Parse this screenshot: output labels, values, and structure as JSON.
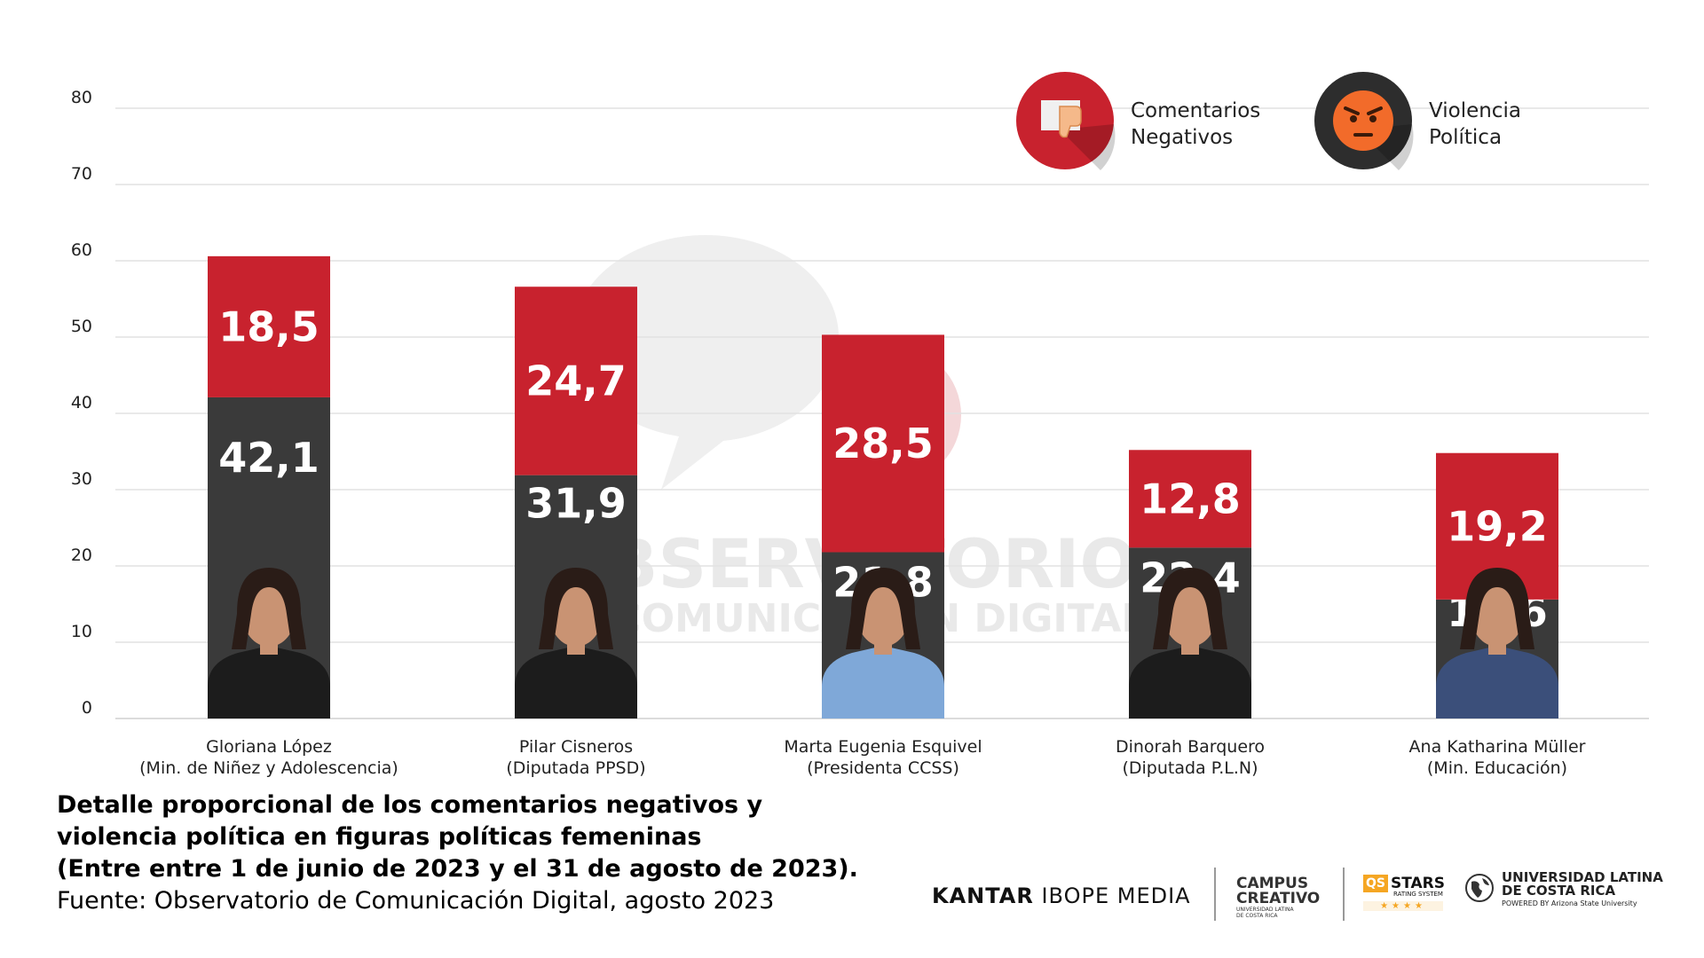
{
  "chart_data": {
    "type": "bar",
    "stacked": true,
    "categories": [
      [
        "Gloriana López",
        "(Min. de Niñez y Adolescencia)"
      ],
      [
        "Pilar Cisneros",
        "(Diputada PPSD)"
      ],
      [
        "Marta Eugenia Esquivel",
        "(Presidenta CCSS)"
      ],
      [
        "Dinorah Barquero",
        "(Diputada P.L.N)"
      ],
      [
        "Ana Katharina Müller",
        "(Min. Educación)"
      ]
    ],
    "series": [
      {
        "name": "Comentarios Negativos",
        "color": "#3a3a3a",
        "values": [
          42.1,
          31.9,
          21.8,
          22.4,
          15.6
        ],
        "labels": [
          "42,1",
          "31,9",
          "21,8",
          "22,4",
          "15,6"
        ]
      },
      {
        "name": "Violencia Política",
        "color": "#c8222e",
        "values": [
          18.5,
          24.7,
          28.5,
          12.8,
          19.2
        ],
        "labels": [
          "18,5",
          "24,7",
          "28,5",
          "12,8",
          "19,2"
        ]
      }
    ],
    "yticks": [
      "0",
      "10",
      "20",
      "30",
      "40",
      "50",
      "60",
      "70",
      "80"
    ],
    "ylim": [
      0,
      80
    ],
    "grid": true,
    "legend_position": "top-right",
    "legend": [
      {
        "lines": [
          "Comentarios",
          "Negativos"
        ],
        "icon": "thumbs-down-icon",
        "color": "#c8222e"
      },
      {
        "lines": [
          "Violencia",
          "Política"
        ],
        "icon": "angry-face-icon",
        "color": "#f26b2a"
      }
    ]
  },
  "watermark": {
    "line1": "OBSERVATORIO",
    "line2": "DE COMUNICACIÓN DIGITAL"
  },
  "caption": {
    "lines": [
      "Detalle proporcional de los comentarios negativos y",
      "violencia política en figuras políticas femeninas",
      "(Entre entre 1 de junio de 2023 y el 31 de agosto de 2023)."
    ],
    "source": "Fuente: Observatorio de Comunicación Digital, agosto 2023"
  },
  "logos": {
    "kantar_bold": "KANTAR",
    "kantar_rest": "IBOPE MEDIA",
    "campus": [
      "CAMPUS",
      "CREATIVO"
    ],
    "campus_small": [
      "UNIVERSIDAD LATINA",
      "DE COSTA RICA"
    ],
    "qs": "QS",
    "stars": "STARS",
    "stars_small": "RATING SYSTEM",
    "ulacit": [
      "UNIVERSIDAD LATINA",
      "DE COSTA RICA"
    ],
    "ulacit_small": "POWERED BY Arizona State University"
  }
}
